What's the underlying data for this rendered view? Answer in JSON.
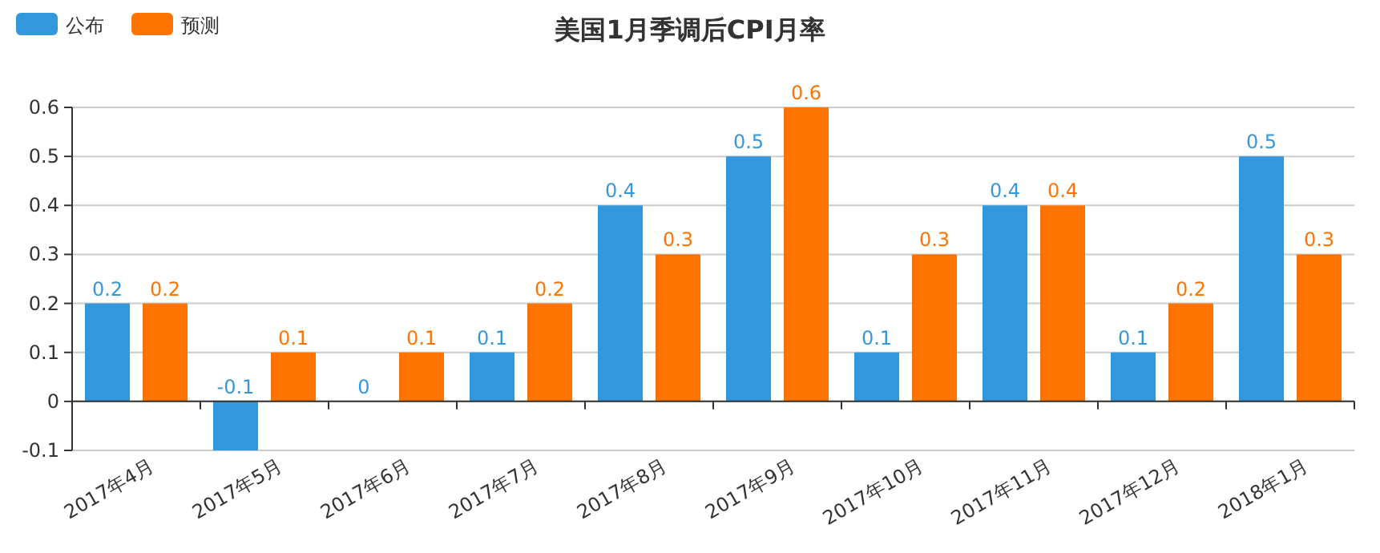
{
  "chart_data": {
    "type": "bar",
    "title": "美国1月季调后CPI月率",
    "categories": [
      "2017年4月",
      "2017年5月",
      "2017年6月",
      "2017年7月",
      "2017年8月",
      "2017年9月",
      "2017年10月",
      "2017年11月",
      "2017年12月",
      "2018年1月"
    ],
    "series": [
      {
        "name": "公布",
        "color": "#3398db",
        "values": [
          0.2,
          -0.1,
          0,
          0.1,
          0.4,
          0.5,
          0.1,
          0.4,
          0.1,
          0.5
        ]
      },
      {
        "name": "预测",
        "color": "#ff7300",
        "values": [
          0.2,
          0.1,
          0.1,
          0.2,
          0.3,
          0.6,
          0.3,
          0.4,
          0.2,
          0.3
        ]
      }
    ],
    "ylim": [
      -0.1,
      0.6
    ],
    "yticks": [
      -0.1,
      0,
      0.1,
      0.2,
      0.3,
      0.4,
      0.5,
      0.6
    ],
    "grid": "y",
    "legend": "top left",
    "data_labels": true
  }
}
